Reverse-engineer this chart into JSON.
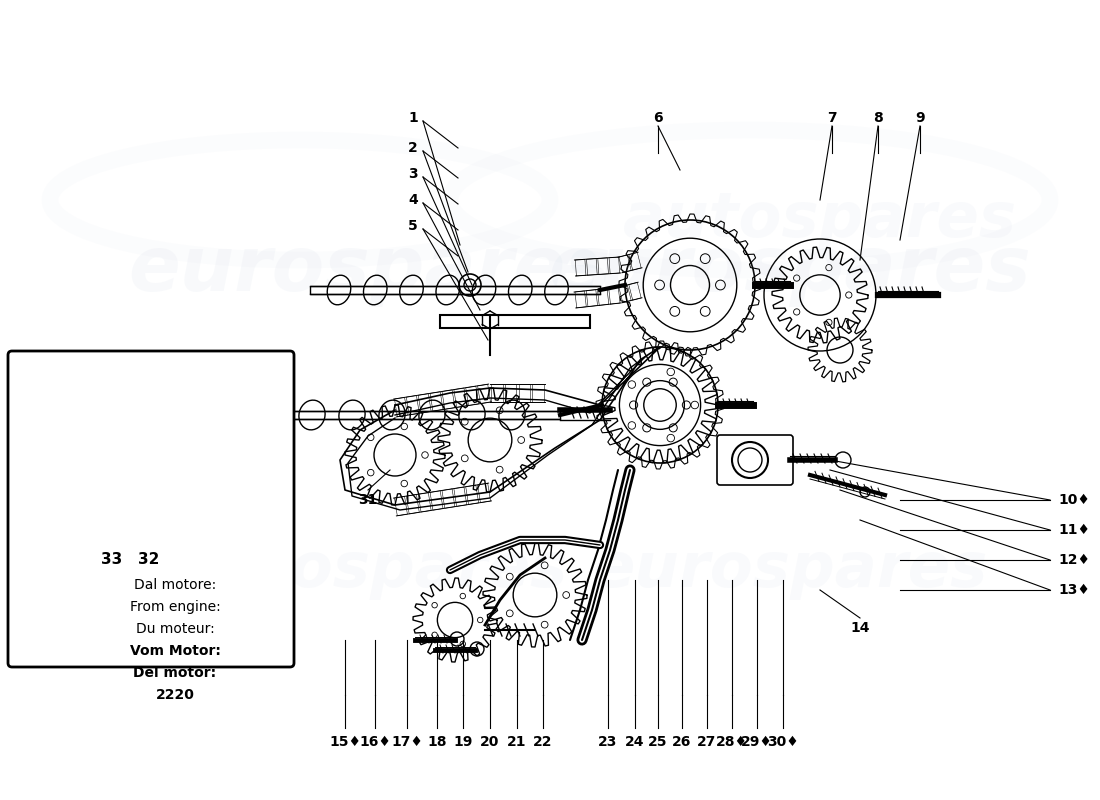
{
  "bg_color": "#ffffff",
  "line_color": "#000000",
  "watermark_color": "#c8d4e4",
  "box_labels": {
    "dal_motore": "Dal motore:",
    "from_engine": "From engine:",
    "du_moteur": "Du moteur:",
    "vom_motor": "Vom Motor:",
    "del_motor": "Del motor:",
    "engine_number": "2220"
  },
  "bottom_labels": [
    "15♦",
    "16♦",
    "17♦",
    "18",
    "19",
    "20",
    "21",
    "22",
    "23",
    "24",
    "25",
    "26",
    "27",
    "28♦",
    "29♦",
    "30♦"
  ],
  "right_labels": [
    "10♦",
    "11♦",
    "12♦",
    "13♦"
  ],
  "top_labels": [
    "1",
    "2",
    "3",
    "4",
    "5"
  ],
  "top_right_labels": [
    "6",
    "7",
    "8",
    "9"
  ]
}
